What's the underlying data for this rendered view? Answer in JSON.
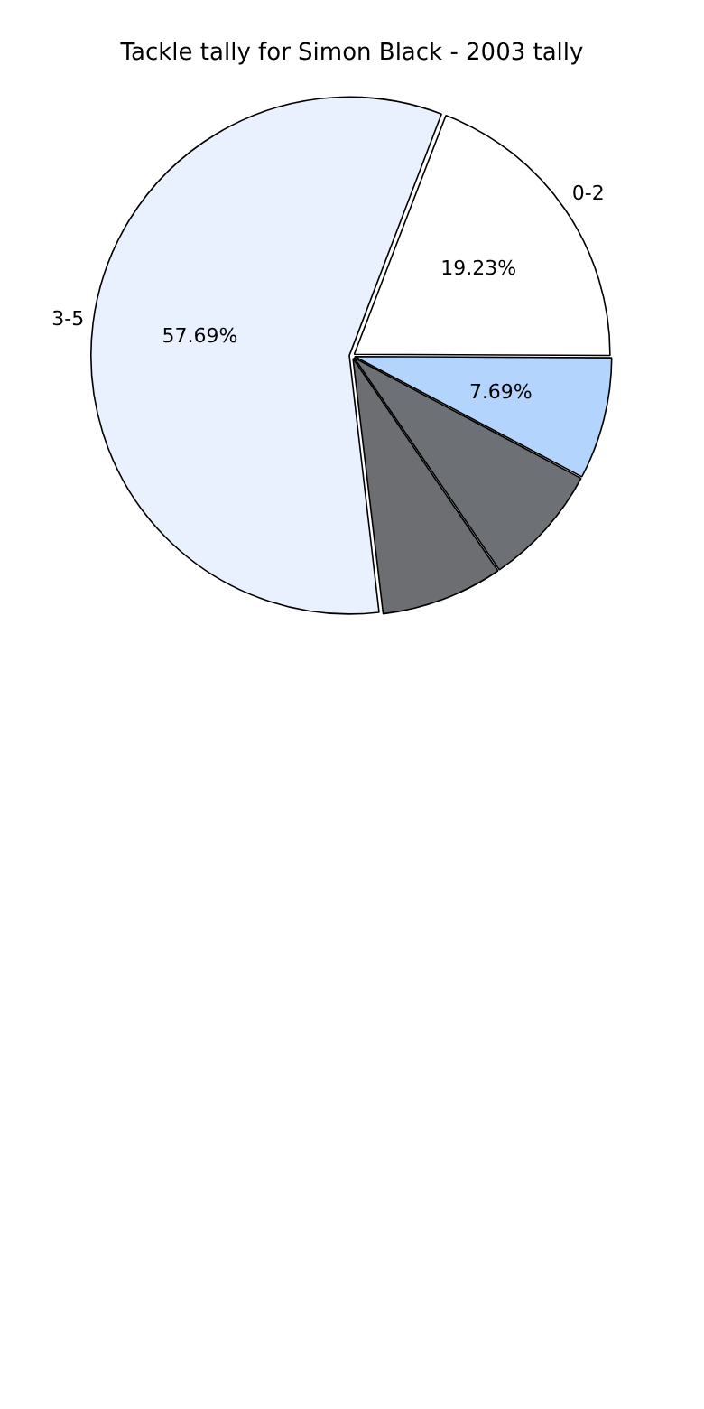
{
  "chart_data": {
    "type": "pie",
    "title": "Tackle tally for Simon Black - 2003 tally",
    "categories": [
      "0-2",
      null,
      null,
      null,
      "3-5"
    ],
    "values": [
      19.23,
      7.69,
      7.69,
      7.69,
      57.69
    ],
    "colors": [
      "#ffffff",
      "#b3d4fc",
      "#6d7075",
      "#6c6e72",
      "#eaf1fe"
    ],
    "value_labels": [
      "19.23%",
      "7.69%",
      null,
      null,
      "57.69%"
    ],
    "legend": false
  }
}
